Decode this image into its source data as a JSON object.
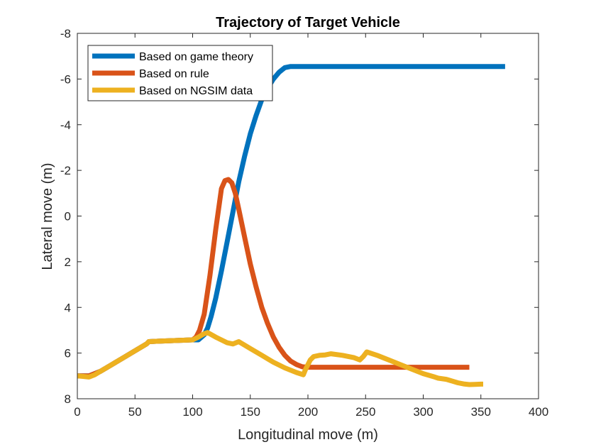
{
  "chart_data": {
    "type": "line",
    "title": "Trajectory of Target Vehicle",
    "xlabel": "Longitudinal move (m)",
    "ylabel": "Lateral move (m)",
    "xlim": [
      0,
      400
    ],
    "ylim": [
      -8,
      8
    ],
    "y_reversed": true,
    "xticks": [
      0,
      50,
      100,
      150,
      200,
      250,
      300,
      350,
      400
    ],
    "yticks": [
      -8,
      -6,
      -4,
      -2,
      0,
      2,
      4,
      6,
      8
    ],
    "xtick_labels": [
      "0",
      "50",
      "100",
      "150",
      "200",
      "250",
      "300",
      "350",
      "400"
    ],
    "ytick_labels": [
      "-8",
      "-6",
      "-4",
      "-2",
      "0",
      "2",
      "4",
      "6",
      "8"
    ],
    "grid": false,
    "legend_position": "top-left",
    "series": [
      {
        "name": "Based on game theory",
        "color": "#0072BD",
        "x": [
          0,
          10,
          20,
          30,
          40,
          50,
          60,
          62,
          70,
          80,
          90,
          100,
          105,
          110,
          113,
          116,
          120,
          125,
          130,
          135,
          140,
          145,
          150,
          155,
          160,
          165,
          170,
          175,
          180,
          185,
          200,
          250,
          300,
          350,
          371
        ],
        "y": [
          7.0,
          7.0,
          6.8,
          6.5,
          6.2,
          5.9,
          5.6,
          5.5,
          5.48,
          5.46,
          5.44,
          5.42,
          5.42,
          5.2,
          4.9,
          4.4,
          3.6,
          2.4,
          1.1,
          -0.2,
          -1.5,
          -2.6,
          -3.6,
          -4.4,
          -5.1,
          -5.6,
          -6.0,
          -6.3,
          -6.5,
          -6.55,
          -6.55,
          -6.55,
          -6.55,
          -6.55,
          -6.55
        ]
      },
      {
        "name": "Based on rule",
        "color": "#D95319",
        "x": [
          0,
          10,
          20,
          30,
          40,
          50,
          60,
          62,
          70,
          80,
          90,
          100,
          103,
          106,
          110,
          115,
          120,
          125,
          128,
          131,
          134,
          137,
          140,
          145,
          150,
          155,
          160,
          165,
          170,
          175,
          180,
          185,
          190,
          195,
          200,
          220,
          250,
          300,
          340
        ],
        "y": [
          7.0,
          7.0,
          6.8,
          6.5,
          6.2,
          5.9,
          5.6,
          5.5,
          5.48,
          5.46,
          5.44,
          5.42,
          5.3,
          5.0,
          4.3,
          2.6,
          0.6,
          -1.2,
          -1.55,
          -1.6,
          -1.45,
          -1.0,
          -0.3,
          0.9,
          2.1,
          3.1,
          4.0,
          4.7,
          5.3,
          5.75,
          6.1,
          6.35,
          6.5,
          6.6,
          6.62,
          6.62,
          6.62,
          6.62,
          6.62
        ]
      },
      {
        "name": "Based on NGSIM data",
        "color": "#EDB120",
        "x": [
          0,
          5,
          10,
          15,
          20,
          30,
          40,
          50,
          60,
          62,
          70,
          80,
          90,
          100,
          105,
          110,
          113,
          120,
          130,
          135,
          140,
          150,
          160,
          170,
          180,
          190,
          196,
          198,
          202,
          205,
          210,
          215,
          220,
          230,
          240,
          245,
          248,
          251,
          260,
          270,
          280,
          290,
          300,
          310,
          313,
          320,
          330,
          335,
          340,
          345,
          350,
          352
        ],
        "y": [
          7.0,
          7.02,
          7.05,
          6.95,
          6.8,
          6.5,
          6.2,
          5.9,
          5.6,
          5.5,
          5.48,
          5.46,
          5.44,
          5.42,
          5.3,
          5.15,
          5.1,
          5.3,
          5.55,
          5.6,
          5.5,
          5.8,
          6.1,
          6.4,
          6.65,
          6.85,
          6.95,
          6.7,
          6.3,
          6.15,
          6.1,
          6.08,
          6.03,
          6.1,
          6.2,
          6.3,
          6.15,
          5.95,
          6.1,
          6.3,
          6.5,
          6.7,
          6.9,
          7.05,
          7.1,
          7.15,
          7.3,
          7.35,
          7.38,
          7.37,
          7.36,
          7.36
        ]
      }
    ]
  }
}
